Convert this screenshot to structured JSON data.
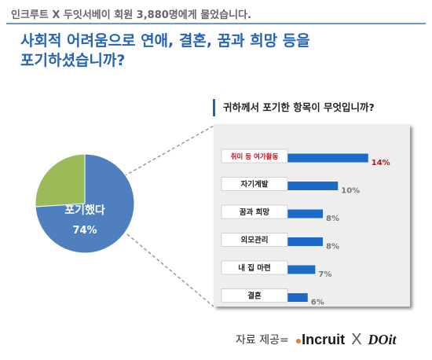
{
  "header": {
    "note": "인크루트 X 두잇서베이 회원 3,880명에게 물었습니다.",
    "question_line1": "사회적 어려움으로 연애, 결혼, 꿈과 희망 등을",
    "question_line2": "포기하셨습니까?"
  },
  "colors": {
    "title_blue": "#2563b4",
    "pie_blue": "#4f7fbf",
    "pie_green": "#9bbb59",
    "bar_blue": "#1c6ac7",
    "highlight_red": "#c0111f",
    "value_gray": "#777777",
    "panel_bg": "#eeeeee"
  },
  "sub_title": "귀하께서 포기한 항목이 무엇입니까?",
  "footer": {
    "credit_label": "자료 제공=",
    "logo1": "Incruit",
    "logo_x": "X",
    "logo2": "DOit"
  },
  "chart_data": [
    {
      "type": "pie",
      "slices": [
        {
          "name": "포기했다",
          "value": 74,
          "label": "74%",
          "color": "#4f7fbf"
        },
        {
          "name": "",
          "value": 26,
          "color": "#9bbb59"
        }
      ]
    },
    {
      "type": "bar",
      "orientation": "horizontal",
      "title": "귀하께서 포기한 항목이 무엇입니까?",
      "categories": [
        "취미 등 여가활동",
        "자기계발",
        "꿈과 희망",
        "외모관리",
        "내 집 마련",
        "결혼"
      ],
      "values": [
        14,
        10,
        8,
        8,
        7,
        6
      ],
      "value_labels": [
        "14%",
        "10%",
        "8%",
        "8%",
        "7%",
        "6%"
      ],
      "highlight_index": 0,
      "xlim": [
        0,
        16
      ]
    }
  ]
}
